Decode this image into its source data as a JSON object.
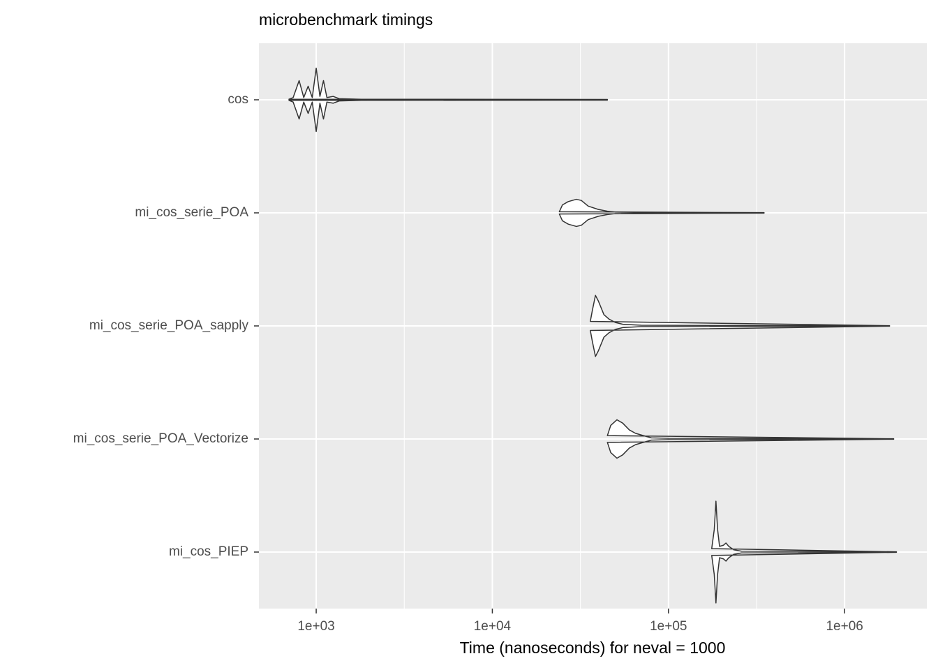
{
  "chart_data": {
    "type": "violin",
    "title": "microbenchmark timings",
    "xlabel": "Time (nanoseconds) for neval = 1000",
    "categories": [
      "cos",
      "mi_cos_serie_POA",
      "mi_cos_serie_POA_sapply",
      "mi_cos_serie_POA_Vectorize",
      "mi_cos_PIEP"
    ],
    "series": [
      {
        "x": [
          700,
          740,
          800,
          850,
          900,
          950,
          1000,
          1050,
          1100,
          1150,
          1250,
          1350,
          1800,
          45000
        ],
        "values": [
          0.005,
          0.02,
          0.17,
          0.02,
          0.12,
          0.02,
          0.28,
          0.03,
          0.17,
          0.02,
          0.03,
          0.01,
          0.005,
          0.003
        ]
      },
      {
        "x": [
          24000,
          25000,
          27000,
          30000,
          32000,
          35000,
          40000,
          45000,
          50000,
          70000,
          349000
        ],
        "values": [
          0.01,
          0.07,
          0.1,
          0.12,
          0.11,
          0.06,
          0.03,
          0.015,
          0.007,
          0.004,
          0.002
        ]
      },
      {
        "x": [
          36000,
          37000,
          38500,
          40000,
          43000,
          46000,
          50000,
          55000,
          70000,
          1800000
        ],
        "values": [
          0.04,
          0.14,
          0.27,
          0.22,
          0.1,
          0.06,
          0.03,
          0.015,
          0.006,
          0.002
        ]
      },
      {
        "x": [
          45000,
          47000,
          51000,
          55000,
          60000,
          65000,
          72000,
          80000,
          100000,
          1900000
        ],
        "values": [
          0.03,
          0.12,
          0.17,
          0.14,
          0.08,
          0.05,
          0.03,
          0.01,
          0.006,
          0.002
        ]
      },
      {
        "x": [
          176000,
          182000,
          186000,
          190000,
          195000,
          205000,
          212000,
          220000,
          235000,
          260000,
          1970000
        ],
        "values": [
          0.03,
          0.2,
          0.45,
          0.2,
          0.05,
          0.06,
          0.08,
          0.05,
          0.02,
          0.008,
          0.002
        ]
      }
    ],
    "xscale": "log",
    "xlim": [
      473,
      2930000
    ],
    "xticks": [
      {
        "value": 1000,
        "label": "1e+03"
      },
      {
        "value": 10000,
        "label": "1e+04"
      },
      {
        "value": 100000,
        "label": "1e+05"
      },
      {
        "value": 1000000,
        "label": "1e+06"
      }
    ],
    "minor_xticks": [
      3162.28,
      31622.8,
      316228
    ],
    "grid": true,
    "panel_color": "#ebebeb",
    "fill_color": "#ffffff",
    "line_color": "#333333"
  }
}
